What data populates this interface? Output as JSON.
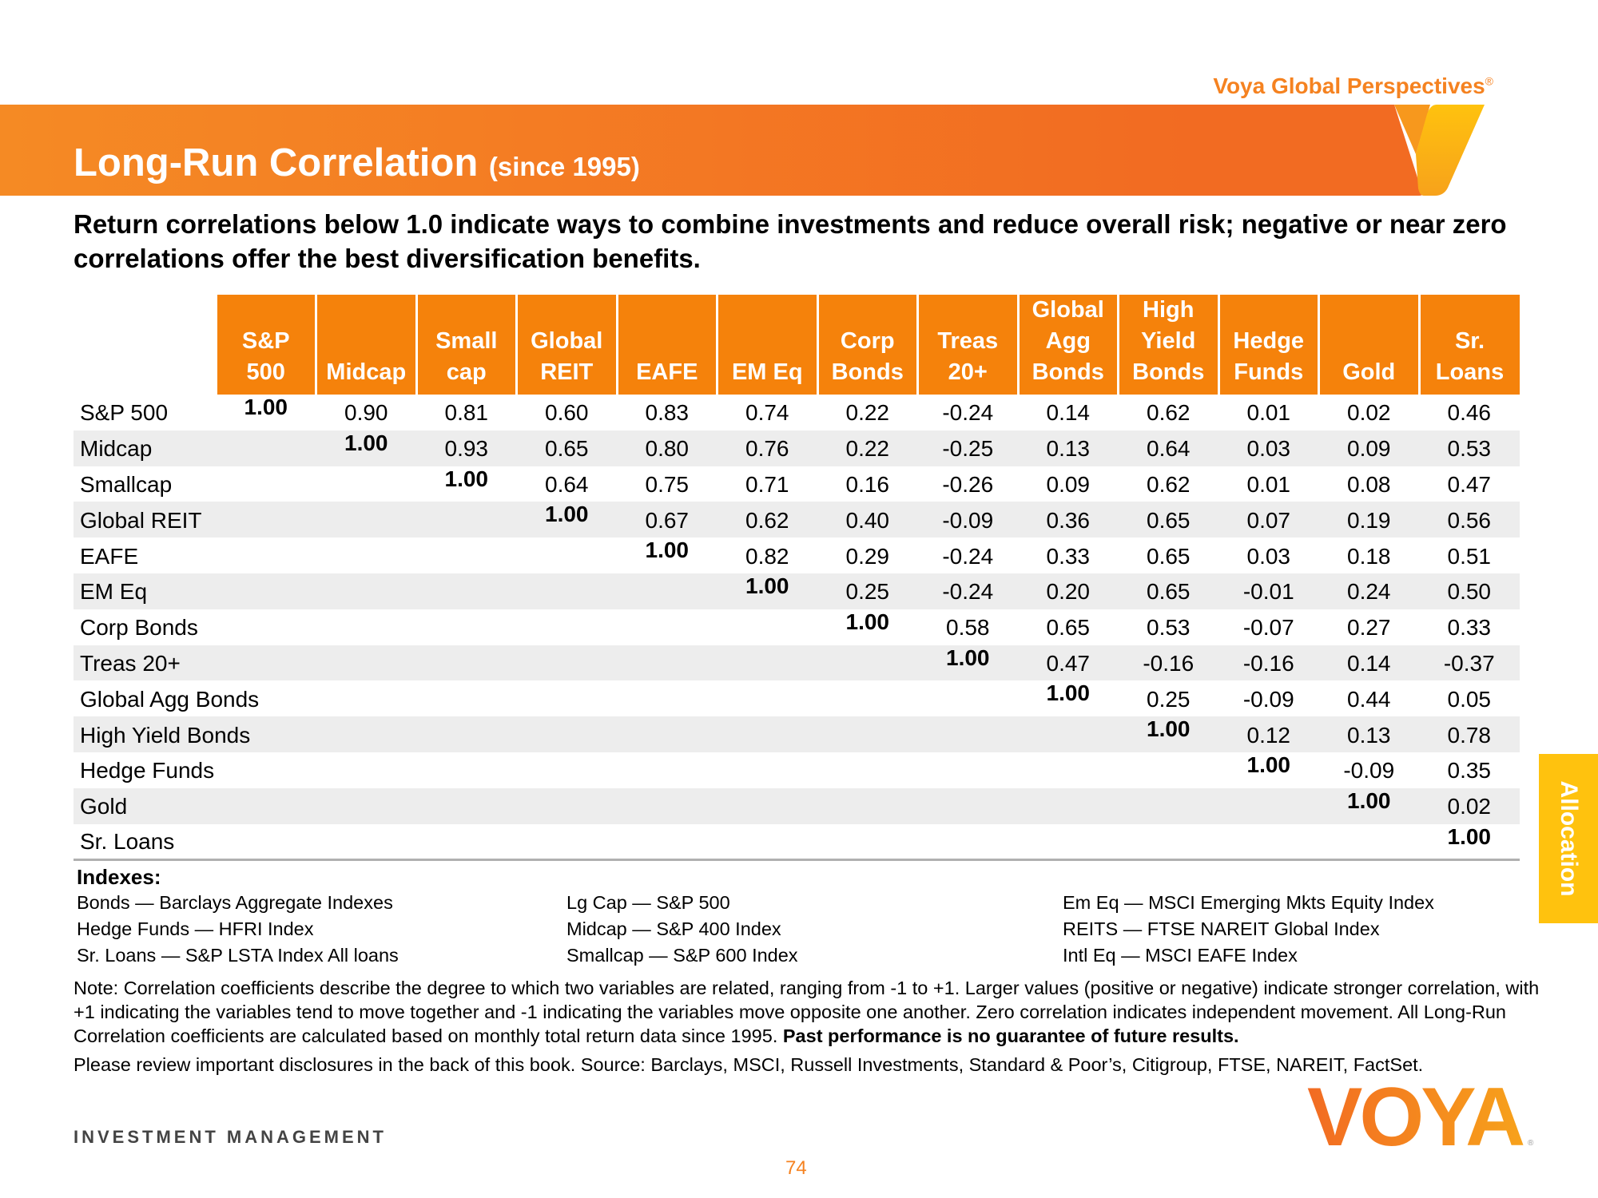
{
  "brand": {
    "text": "Voya Global Perspectives",
    "mark": "®"
  },
  "title": {
    "main": "Long-Run Correlation",
    "sub": "(since 1995)"
  },
  "subtitle": "Return correlations below 1.0 indicate ways to combine investments and reduce overall risk; negative or near zero correlations offer the best diversification benefits.",
  "table": {
    "headers": [
      [
        "S&P",
        "500"
      ],
      [
        "",
        "Midcap"
      ],
      [
        "Small",
        "cap"
      ],
      [
        "Global",
        "REIT"
      ],
      [
        "",
        "EAFE"
      ],
      [
        "",
        "EM Eq"
      ],
      [
        "Corp",
        "Bonds"
      ],
      [
        "Treas",
        "20+"
      ],
      [
        "Global",
        "Agg",
        "Bonds"
      ],
      [
        "High",
        "Yield",
        "Bonds"
      ],
      [
        "Hedge",
        "Funds"
      ],
      [
        "",
        "Gold"
      ],
      [
        "Sr.",
        "Loans"
      ]
    ],
    "rows": [
      {
        "label": "S&P 500",
        "values": [
          "1.00",
          "0.90",
          "0.81",
          "0.60",
          "0.83",
          "0.74",
          "0.22",
          "-0.24",
          "0.14",
          "0.62",
          "0.01",
          "0.02",
          "0.46"
        ]
      },
      {
        "label": "Midcap",
        "values": [
          "",
          "1.00",
          "0.93",
          "0.65",
          "0.80",
          "0.76",
          "0.22",
          "-0.25",
          "0.13",
          "0.64",
          "0.03",
          "0.09",
          "0.53"
        ]
      },
      {
        "label": "Smallcap",
        "values": [
          "",
          "",
          "1.00",
          "0.64",
          "0.75",
          "0.71",
          "0.16",
          "-0.26",
          "0.09",
          "0.62",
          "0.01",
          "0.08",
          "0.47"
        ]
      },
      {
        "label": "Global REIT",
        "values": [
          "",
          "",
          "",
          "1.00",
          "0.67",
          "0.62",
          "0.40",
          "-0.09",
          "0.36",
          "0.65",
          "0.07",
          "0.19",
          "0.56"
        ]
      },
      {
        "label": "EAFE",
        "values": [
          "",
          "",
          "",
          "",
          "1.00",
          "0.82",
          "0.29",
          "-0.24",
          "0.33",
          "0.65",
          "0.03",
          "0.18",
          "0.51"
        ]
      },
      {
        "label": "EM Eq",
        "values": [
          "",
          "",
          "",
          "",
          "",
          "1.00",
          "0.25",
          "-0.24",
          "0.20",
          "0.65",
          "-0.01",
          "0.24",
          "0.50"
        ]
      },
      {
        "label": "Corp Bonds",
        "values": [
          "",
          "",
          "",
          "",
          "",
          "",
          "1.00",
          "0.58",
          "0.65",
          "0.53",
          "-0.07",
          "0.27",
          "0.33"
        ]
      },
      {
        "label": "Treas 20+",
        "values": [
          "",
          "",
          "",
          "",
          "",
          "",
          "",
          "1.00",
          "0.47",
          "-0.16",
          "-0.16",
          "0.14",
          "-0.37"
        ]
      },
      {
        "label": "Global Agg Bonds",
        "values": [
          "",
          "",
          "",
          "",
          "",
          "",
          "",
          "",
          "1.00",
          "0.25",
          "-0.09",
          "0.44",
          "0.05"
        ]
      },
      {
        "label": "High Yield Bonds",
        "values": [
          "",
          "",
          "",
          "",
          "",
          "",
          "",
          "",
          "",
          "1.00",
          "0.12",
          "0.13",
          "0.78"
        ]
      },
      {
        "label": "Hedge Funds",
        "values": [
          "",
          "",
          "",
          "",
          "",
          "",
          "",
          "",
          "",
          "",
          "1.00",
          "-0.09",
          "0.35"
        ]
      },
      {
        "label": "Gold",
        "values": [
          "",
          "",
          "",
          "",
          "",
          "",
          "",
          "",
          "",
          "",
          "",
          "1.00",
          "0.02"
        ]
      },
      {
        "label": "Sr. Loans",
        "values": [
          "",
          "",
          "",
          "",
          "",
          "",
          "",
          "",
          "",
          "",
          "",
          "",
          "1.00"
        ]
      }
    ]
  },
  "indexes": {
    "heading": "Indexes:",
    "columns": [
      [
        "Bonds — Barclays Aggregate Indexes",
        "Hedge Funds — HFRI Index",
        "Sr. Loans — S&P LSTA Index All loans"
      ],
      [
        "Lg Cap — S&P 500",
        "Midcap — S&P 400 Index",
        "Smallcap — S&P 600 Index"
      ],
      [
        "Em Eq — MSCI Emerging Mkts Equity Index",
        "REITS — FTSE NAREIT Global Index",
        "Intl Eq — MSCI EAFE Index"
      ]
    ]
  },
  "note": {
    "text": "Note: Correlation coefficients describe the degree to which two variables are related, ranging from -1 to +1. Larger values (positive or negative) indicate stronger correlation, with +1 indicating the variables tend to move together and -1 indicating the variables move opposite one another. Zero correlation indicates independent movement. All Long-Run Correlation coefficients are calculated based on monthly total return data since 1995. ",
    "bold": "Past performance is no guarantee of future results."
  },
  "source": "Please review important disclosures in the back of this book. Source: Barclays, MSCI, Russell Investments, Standard & Poor’s, Citigroup, FTSE, NAREIT, FactSet.",
  "footer": {
    "company": "INVESTMENT MANAGEMENT",
    "page": "74",
    "logo": "VOYA"
  },
  "side_tab": "Allocation",
  "colors": {
    "orange": "#F5820B",
    "banner": "#F26B22",
    "yellow": "#FFC20E"
  }
}
